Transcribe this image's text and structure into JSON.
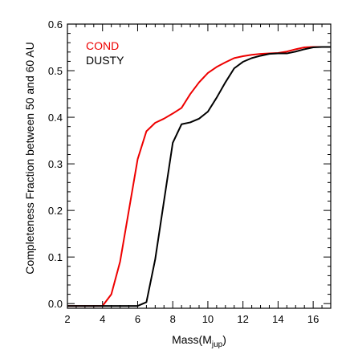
{
  "chart_data": {
    "type": "line",
    "title": "",
    "xlabel": "Mass(M",
    "xlabel_sub": "jup",
    "xlabel_close": ")",
    "ylabel": "Completeness Fraction between 50 and 60 AU",
    "xlim": [
      2,
      17
    ],
    "ylim": [
      -0.01,
      0.6
    ],
    "xticks": [
      2,
      4,
      6,
      8,
      10,
      12,
      14,
      16
    ],
    "yticks": [
      0.0,
      0.1,
      0.2,
      0.3,
      0.4,
      0.5,
      0.6
    ],
    "ytick_labels": [
      "0.0",
      "0.1",
      "0.2",
      "0.3",
      "0.4",
      "0.5",
      "0.6"
    ],
    "legend_position": "top-left",
    "series": [
      {
        "name": "COND",
        "color": "#ee0000",
        "x": [
          2,
          4,
          4.5,
          5,
          5.5,
          6,
          6.5,
          7,
          7.5,
          8,
          8.5,
          9,
          9.5,
          10,
          10.5,
          11,
          11.5,
          12,
          12.5,
          13,
          13.5,
          14,
          14.5,
          15,
          15.5,
          16,
          16.5,
          17
        ],
        "y": [
          -0.005,
          -0.005,
          0.02,
          0.09,
          0.2,
          0.31,
          0.37,
          0.388,
          0.397,
          0.408,
          0.42,
          0.45,
          0.475,
          0.495,
          0.508,
          0.518,
          0.527,
          0.531,
          0.534,
          0.536,
          0.537,
          0.538,
          0.541,
          0.546,
          0.55,
          0.551,
          0.551,
          0.551
        ]
      },
      {
        "name": "DUSTY",
        "color": "#000000",
        "x": [
          2,
          6,
          6.5,
          7,
          7.5,
          8,
          8.5,
          9,
          9.5,
          10,
          10.5,
          11,
          11.5,
          12,
          12.5,
          13,
          13.5,
          14,
          14.5,
          15,
          15.5,
          16,
          16.5,
          17
        ],
        "y": [
          -0.005,
          -0.005,
          0.003,
          0.095,
          0.22,
          0.345,
          0.385,
          0.389,
          0.397,
          0.412,
          0.442,
          0.475,
          0.505,
          0.519,
          0.527,
          0.532,
          0.536,
          0.537,
          0.537,
          0.541,
          0.546,
          0.55,
          0.551,
          0.551
        ]
      }
    ]
  }
}
